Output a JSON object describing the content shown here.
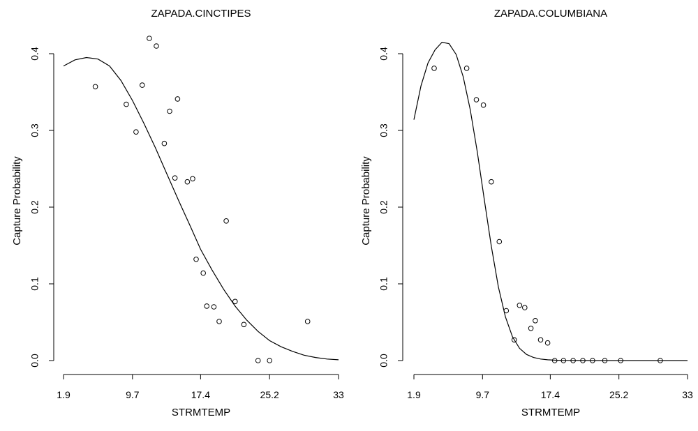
{
  "chart_data": [
    {
      "type": "scatter",
      "title": "ZAPADA.CINCTIPES",
      "xlabel": "STRMTEMP",
      "ylabel": "Capture Probability",
      "xlim": [
        1.9,
        33
      ],
      "ylim": [
        0,
        0.42
      ],
      "xticks": [
        "1.9",
        "9.7",
        "17.4",
        "25.2",
        "33"
      ],
      "yticks": [
        "0.0",
        "0.1",
        "0.2",
        "0.3",
        "0.4"
      ],
      "grid": false,
      "series": [
        {
          "kind": "points",
          "x": [
            5.5,
            9.0,
            10.1,
            10.8,
            11.6,
            12.4,
            13.3,
            13.9,
            14.5,
            14.8,
            15.9,
            16.5,
            16.9,
            17.7,
            18.1,
            18.9,
            19.5,
            20.3,
            21.3,
            22.3,
            23.9,
            25.2,
            29.5
          ],
          "y": [
            0.357,
            0.334,
            0.298,
            0.359,
            0.42,
            0.41,
            0.283,
            0.325,
            0.238,
            0.341,
            0.233,
            0.237,
            0.132,
            0.114,
            0.071,
            0.07,
            0.051,
            0.182,
            0.077,
            0.047,
            0.0,
            0.0,
            0.051
          ]
        },
        {
          "kind": "line",
          "x": [
            1.9,
            3.2,
            4.5,
            5.8,
            7.1,
            8.4,
            9.7,
            11.0,
            12.3,
            13.6,
            14.9,
            16.2,
            17.4,
            18.7,
            20.0,
            21.3,
            22.6,
            23.9,
            25.2,
            26.5,
            27.8,
            29.1,
            30.4,
            31.7,
            33.0
          ],
          "y": [
            0.384,
            0.392,
            0.395,
            0.393,
            0.384,
            0.365,
            0.339,
            0.309,
            0.277,
            0.243,
            0.209,
            0.176,
            0.145,
            0.118,
            0.093,
            0.071,
            0.053,
            0.038,
            0.026,
            0.018,
            0.012,
            0.007,
            0.004,
            0.002,
            0.001
          ]
        }
      ]
    },
    {
      "type": "scatter",
      "title": "ZAPADA.COLUMBIANA",
      "xlabel": "STRMTEMP",
      "ylabel": "Capture Probability",
      "xlim": [
        1.9,
        33
      ],
      "ylim": [
        0,
        0.42
      ],
      "xticks": [
        "1.9",
        "9.7",
        "17.4",
        "25.2",
        "33"
      ],
      "yticks": [
        "0.0",
        "0.1",
        "0.2",
        "0.3",
        "0.4"
      ],
      "grid": false,
      "series": [
        {
          "kind": "points",
          "x": [
            4.2,
            7.9,
            9.0,
            9.8,
            10.7,
            11.6,
            12.4,
            13.3,
            13.9,
            14.5,
            15.2,
            15.7,
            16.3,
            17.1,
            17.9,
            18.9,
            20.0,
            21.1,
            22.2,
            23.6,
            25.4,
            29.9
          ],
          "y": [
            0.381,
            0.381,
            0.34,
            0.333,
            0.233,
            0.155,
            0.065,
            0.027,
            0.072,
            0.069,
            0.042,
            0.052,
            0.027,
            0.023,
            0.0,
            0.0,
            0.0,
            0.0,
            0.0,
            0.0,
            0.0,
            0.0
          ]
        },
        {
          "kind": "line",
          "x": [
            1.9,
            2.7,
            3.5,
            4.3,
            5.1,
            5.9,
            6.7,
            7.5,
            8.3,
            9.1,
            9.9,
            10.7,
            11.5,
            12.3,
            13.1,
            13.9,
            14.7,
            15.5,
            16.3,
            17.1,
            18.0,
            19.0,
            20.5,
            22.0,
            24.0,
            27.0,
            30.0,
            33.0
          ],
          "y": [
            0.314,
            0.358,
            0.388,
            0.405,
            0.415,
            0.413,
            0.399,
            0.37,
            0.327,
            0.272,
            0.21,
            0.149,
            0.096,
            0.057,
            0.031,
            0.016,
            0.008,
            0.004,
            0.002,
            0.001,
            0.0005,
            0.0002,
            0.0001,
            0.0,
            0.0,
            0.0,
            0.0,
            0.0
          ]
        }
      ]
    }
  ]
}
